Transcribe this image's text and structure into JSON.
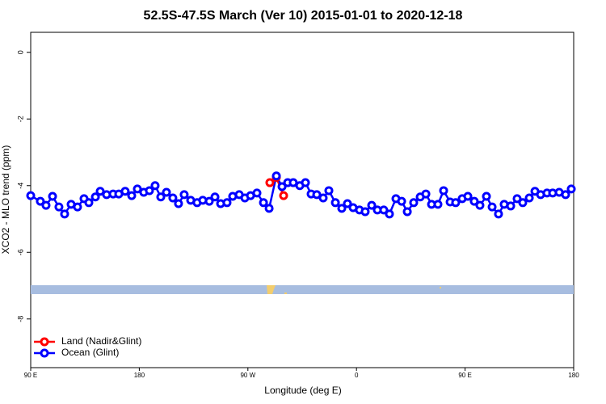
{
  "chart_data": {
    "type": "line",
    "title": "52.5S-47.5S March (Ver 10)   2015-01-01 to 2020-12-18",
    "xlabel": "Longitude (deg E)",
    "ylabel": "XCO2 - MLO trend (ppm)",
    "xlim": [
      90,
      540
    ],
    "ylim": [
      -9.46,
      0.6
    ],
    "xticks": [
      {
        "value": 90,
        "label": "90 E"
      },
      180,
      {
        "value": 270,
        "label": "90 W"
      },
      {
        "value": 360,
        "label": "0"
      },
      {
        "value": 450,
        "label": "90 E"
      },
      {
        "value": 540,
        "label": "180"
      }
    ],
    "yticks": [
      0,
      -2,
      -4,
      -6,
      -8
    ],
    "legend": "bottomleft",
    "series": [
      {
        "name": "Land (Nadir&Glint)",
        "color": "#ff0000",
        "x": [
          288.2,
          293.6,
          299.6
        ],
        "values": [
          -3.91,
          -3.75,
          -4.3
        ]
      },
      {
        "name": "Ocean (Glint)",
        "color": "#0000ff",
        "x": [
          90,
          98,
          102.7,
          108.1,
          113.4,
          118.1,
          123.5,
          128.8,
          134.2,
          138.2,
          143.6,
          147.6,
          152.9,
          158.3,
          163,
          168.3,
          173.7,
          178.4,
          183.7,
          188.4,
          193.1,
          197.8,
          202.5,
          207.8,
          212.5,
          217.2,
          222.6,
          227.9,
          232.6,
          238,
          242.7,
          247.4,
          252.7,
          257.4,
          262.8,
          267.5,
          272.2,
          277.5,
          282.9,
          287.6,
          293.6,
          298.3,
          303,
          307.6,
          313,
          317.7,
          322.4,
          327.1,
          332.4,
          337.1,
          342.5,
          347.8,
          352.5,
          357.2,
          362.5,
          367.2,
          372.6,
          377.3,
          382.6,
          387.3,
          392.7,
          397.4,
          402.1,
          407.4,
          412.8,
          417.5,
          422.2,
          427.5,
          432.2,
          437.6,
          442.2,
          447.6,
          452.3,
          457.6,
          462.3,
          467.7,
          472.4,
          477.7,
          482.4,
          487.8,
          493.1,
          497.8,
          503.2,
          507.9,
          512.6,
          517.9,
          522.6,
          528,
          533.3,
          538
        ],
        "values": [
          -4.3,
          -4.47,
          -4.59,
          -4.32,
          -4.64,
          -4.85,
          -4.56,
          -4.64,
          -4.39,
          -4.51,
          -4.34,
          -4.17,
          -4.27,
          -4.25,
          -4.25,
          -4.17,
          -4.3,
          -4.1,
          -4.2,
          -4.15,
          -4.0,
          -4.34,
          -4.2,
          -4.37,
          -4.54,
          -4.27,
          -4.44,
          -4.51,
          -4.44,
          -4.47,
          -4.34,
          -4.54,
          -4.51,
          -4.32,
          -4.27,
          -4.37,
          -4.3,
          -4.22,
          -4.51,
          -4.68,
          -3.71,
          -4.03,
          -3.91,
          -3.91,
          -4.0,
          -3.91,
          -4.25,
          -4.27,
          -4.37,
          -4.15,
          -4.51,
          -4.68,
          -4.54,
          -4.66,
          -4.73,
          -4.78,
          -4.59,
          -4.73,
          -4.73,
          -4.85,
          -4.39,
          -4.47,
          -4.78,
          -4.51,
          -4.34,
          -4.25,
          -4.56,
          -4.56,
          -4.15,
          -4.49,
          -4.51,
          -4.39,
          -4.32,
          -4.47,
          -4.59,
          -4.32,
          -4.64,
          -4.85,
          -4.56,
          -4.61,
          -4.39,
          -4.51,
          -4.37,
          -4.17,
          -4.27,
          -4.22,
          -4.22,
          -4.2,
          -4.27,
          -4.1
        ]
      }
    ]
  }
}
